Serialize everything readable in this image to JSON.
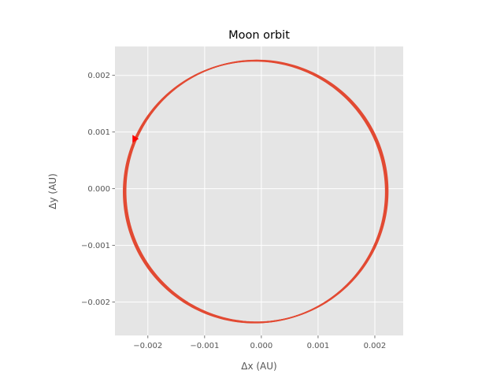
{
  "chart_data": {
    "type": "line",
    "title": "Moon orbit",
    "xlabel": "Δx (AU)",
    "ylabel": "Δy (AU)",
    "x_ticks": [
      -0.002,
      -0.001,
      0.0,
      0.001,
      0.002
    ],
    "x_tick_labels": [
      "−0.002",
      "−0.001",
      "0.000",
      "0.001",
      "0.002"
    ],
    "y_ticks": [
      -0.002,
      -0.001,
      0.0,
      0.001,
      0.002
    ],
    "y_tick_labels": [
      "−0.002",
      "−0.001",
      "0.000",
      "0.001",
      "0.002"
    ],
    "xlim": [
      -0.00258,
      0.0025
    ],
    "ylim": [
      -0.00259,
      0.00251
    ],
    "grid": true,
    "series": [
      {
        "kind": "orbit-path",
        "center": [
          -0.0001,
          -5e-05
        ],
        "radius_x": 0.00231,
        "radius_y": 0.00231,
        "thickness": 4e-05,
        "color": "#E24A33"
      }
    ],
    "marker": {
      "x": -0.00223,
      "y": 0.00088,
      "shape": "triangle-right",
      "color": "#ff0000"
    }
  },
  "colors": {
    "plot_background": "#E5E5E5",
    "grid": "#ffffff",
    "series": "#E24A33",
    "marker": "#ff0000"
  }
}
